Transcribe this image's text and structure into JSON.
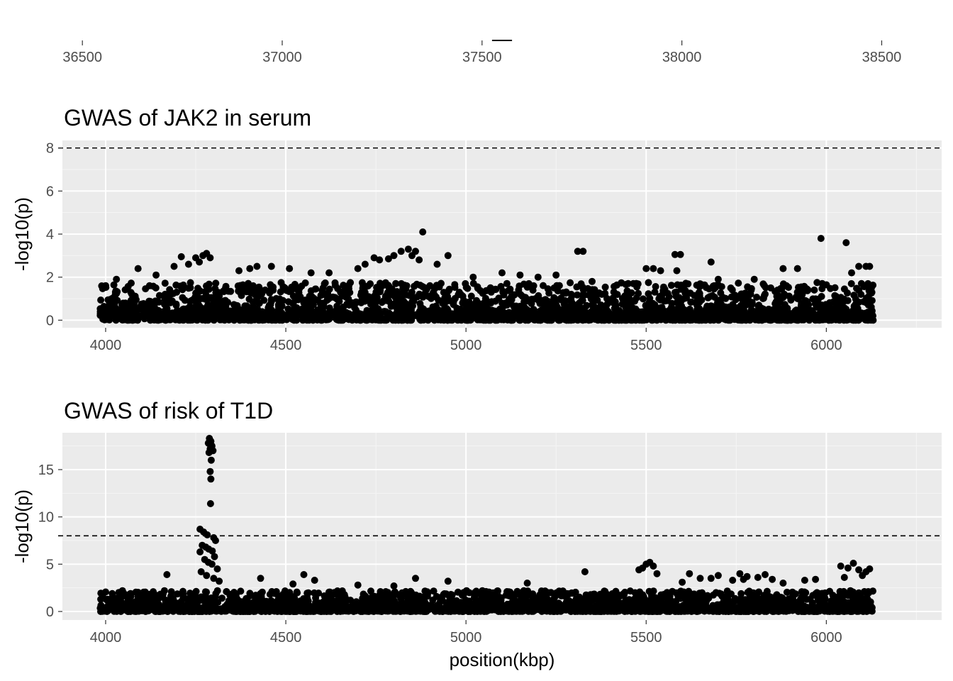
{
  "chart_data": [
    {
      "type": "axis",
      "x": {
        "ticks": [
          36500,
          37000,
          37500,
          38000,
          38500
        ],
        "tick_labels": [
          "36500",
          "37000",
          "37500",
          "38000",
          "38500"
        ],
        "range": [
          36450,
          38650
        ]
      },
      "gene_segment": [
        37525,
        37575
      ]
    },
    {
      "type": "scatter",
      "title": "GWAS of JAK2 in serum",
      "xlabel": "",
      "ylabel": "-log10(p)",
      "xlim": [
        3880,
        6320
      ],
      "ylim": [
        -0.35,
        8.35
      ],
      "x_ticks": [
        4000,
        4500,
        5000,
        5500,
        6000
      ],
      "x_tick_labels": [
        "4000",
        "4500",
        "5000",
        "5500",
        "6000"
      ],
      "y_ticks": [
        0,
        2,
        4,
        6,
        8
      ],
      "y_tick_labels": [
        "0",
        "2",
        "4",
        "6",
        "8"
      ],
      "threshold": 8,
      "x_range": [
        3985,
        6130
      ],
      "points": [
        [
          4880,
          4.1
        ],
        [
          5985,
          3.8
        ],
        [
          6055,
          3.6
        ],
        [
          5310,
          3.2
        ],
        [
          5325,
          3.2
        ],
        [
          4280,
          3.1
        ],
        [
          4270,
          3.0
        ],
        [
          4210,
          2.95
        ],
        [
          4250,
          2.9
        ],
        [
          4820,
          3.2
        ],
        [
          4840,
          3.3
        ],
        [
          4860,
          3.2
        ],
        [
          4800,
          3.0
        ],
        [
          4785,
          2.85
        ],
        [
          4950,
          3.0
        ],
        [
          4920,
          2.6
        ],
        [
          4230,
          2.6
        ],
        [
          4190,
          2.5
        ],
        [
          4260,
          2.7
        ],
        [
          4290,
          2.9
        ],
        [
          4760,
          2.8
        ],
        [
          4745,
          2.9
        ],
        [
          4720,
          2.6
        ],
        [
          4700,
          2.4
        ],
        [
          4850,
          3.0
        ],
        [
          4870,
          2.8
        ],
        [
          5580,
          3.05
        ],
        [
          5595,
          3.05
        ],
        [
          5585,
          2.3
        ],
        [
          5500,
          2.4
        ],
        [
          5520,
          2.4
        ],
        [
          5540,
          2.3
        ],
        [
          5680,
          2.7
        ],
        [
          5880,
          2.4
        ],
        [
          5920,
          2.4
        ],
        [
          6090,
          2.5
        ],
        [
          6110,
          2.5
        ],
        [
          6120,
          2.5
        ],
        [
          6070,
          2.2
        ],
        [
          4090,
          2.4
        ],
        [
          4140,
          2.1
        ],
        [
          4370,
          2.3
        ],
        [
          4400,
          2.4
        ],
        [
          4420,
          2.5
        ],
        [
          4460,
          2.5
        ],
        [
          4510,
          2.4
        ],
        [
          4570,
          2.2
        ],
        [
          4620,
          2.2
        ],
        [
          5100,
          2.2
        ],
        [
          5150,
          2.1
        ],
        [
          5200,
          2.0
        ],
        [
          5350,
          1.8
        ],
        [
          5800,
          1.9
        ],
        [
          5020,
          2.0
        ],
        [
          5250,
          2.1
        ],
        [
          4000,
          1.6
        ],
        [
          4030,
          1.9
        ],
        [
          6125,
          1.5
        ],
        [
          5700,
          1.9
        ],
        [
          5450,
          1.7
        ]
      ]
    },
    {
      "type": "scatter",
      "title": "GWAS of risk of T1D",
      "xlabel": "position(kbp)",
      "ylabel": "-log10(p)",
      "xlim": [
        3880,
        6320
      ],
      "ylim": [
        -0.9,
        18.9
      ],
      "x_ticks": [
        4000,
        4500,
        5000,
        5500,
        6000
      ],
      "x_tick_labels": [
        "4000",
        "4500",
        "5000",
        "5500",
        "6000"
      ],
      "y_ticks": [
        0,
        5,
        10,
        15
      ],
      "y_tick_labels": [
        "0",
        "5",
        "10",
        "15"
      ],
      "threshold": 8,
      "x_range": [
        3985,
        6130
      ],
      "points": [
        [
          4288,
          18.3
        ],
        [
          4292,
          18.0
        ],
        [
          4285,
          17.8
        ],
        [
          4295,
          17.5
        ],
        [
          4290,
          17.2
        ],
        [
          4298,
          17.0
        ],
        [
          4287,
          16.8
        ],
        [
          4293,
          16.0
        ],
        [
          4290,
          14.8
        ],
        [
          4292,
          14.0
        ],
        [
          4291,
          11.4
        ],
        [
          4262,
          8.7
        ],
        [
          4272,
          8.4
        ],
        [
          4282,
          8.1
        ],
        [
          4300,
          7.8
        ],
        [
          4305,
          7.5
        ],
        [
          4268,
          7.0
        ],
        [
          4278,
          6.8
        ],
        [
          4286,
          6.6
        ],
        [
          4296,
          6.4
        ],
        [
          4262,
          6.3
        ],
        [
          4302,
          5.8
        ],
        [
          4275,
          5.5
        ],
        [
          4285,
          5.2
        ],
        [
          4295,
          5.0
        ],
        [
          4310,
          4.5
        ],
        [
          4265,
          4.2
        ],
        [
          4280,
          3.8
        ],
        [
          4300,
          3.5
        ],
        [
          4315,
          3.2
        ],
        [
          4170,
          3.9
        ],
        [
          4430,
          3.5
        ],
        [
          4550,
          3.9
        ],
        [
          4580,
          3.3
        ],
        [
          4860,
          3.5
        ],
        [
          4950,
          3.2
        ],
        [
          5170,
          3.0
        ],
        [
          5330,
          4.2
        ],
        [
          5490,
          4.6
        ],
        [
          5500,
          5.0
        ],
        [
          5510,
          5.2
        ],
        [
          5480,
          4.4
        ],
        [
          5520,
          4.8
        ],
        [
          5530,
          4.0
        ],
        [
          5620,
          4.0
        ],
        [
          5650,
          3.5
        ],
        [
          5700,
          3.8
        ],
        [
          5760,
          4.0
        ],
        [
          5780,
          3.7
        ],
        [
          5810,
          3.6
        ],
        [
          5830,
          3.9
        ],
        [
          5850,
          3.4
        ],
        [
          5880,
          3.0
        ],
        [
          6040,
          4.8
        ],
        [
          6060,
          4.6
        ],
        [
          6075,
          5.1
        ],
        [
          6090,
          4.4
        ],
        [
          6110,
          4.2
        ],
        [
          6120,
          4.5
        ],
        [
          5940,
          3.3
        ],
        [
          5970,
          3.4
        ],
        [
          6050,
          3.6
        ],
        [
          6100,
          3.8
        ],
        [
          5600,
          3.1
        ],
        [
          5680,
          3.5
        ],
        [
          5740,
          3.3
        ],
        [
          5770,
          3.4
        ],
        [
          4520,
          2.9
        ],
        [
          4700,
          2.8
        ],
        [
          4800,
          2.7
        ]
      ]
    }
  ]
}
